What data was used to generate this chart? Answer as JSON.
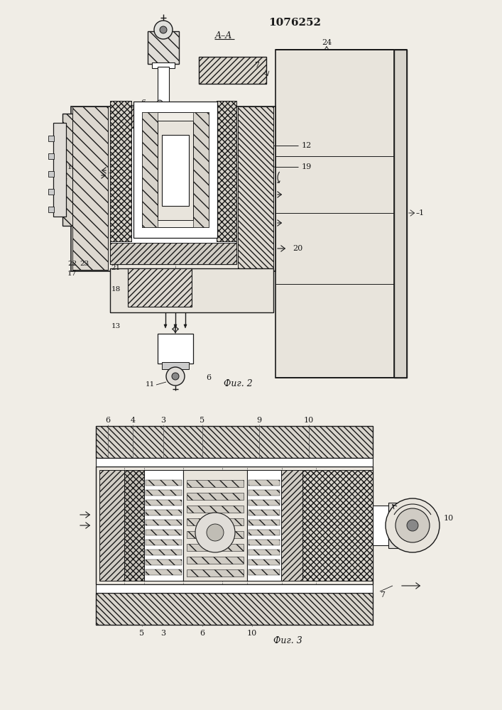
{
  "title": "1076252",
  "background": "#f0ede6",
  "lc": "#1a1a1a",
  "fig2_caption": "Фиг. 2",
  "fig3_caption": "Фиг. 3",
  "section": "A–A"
}
